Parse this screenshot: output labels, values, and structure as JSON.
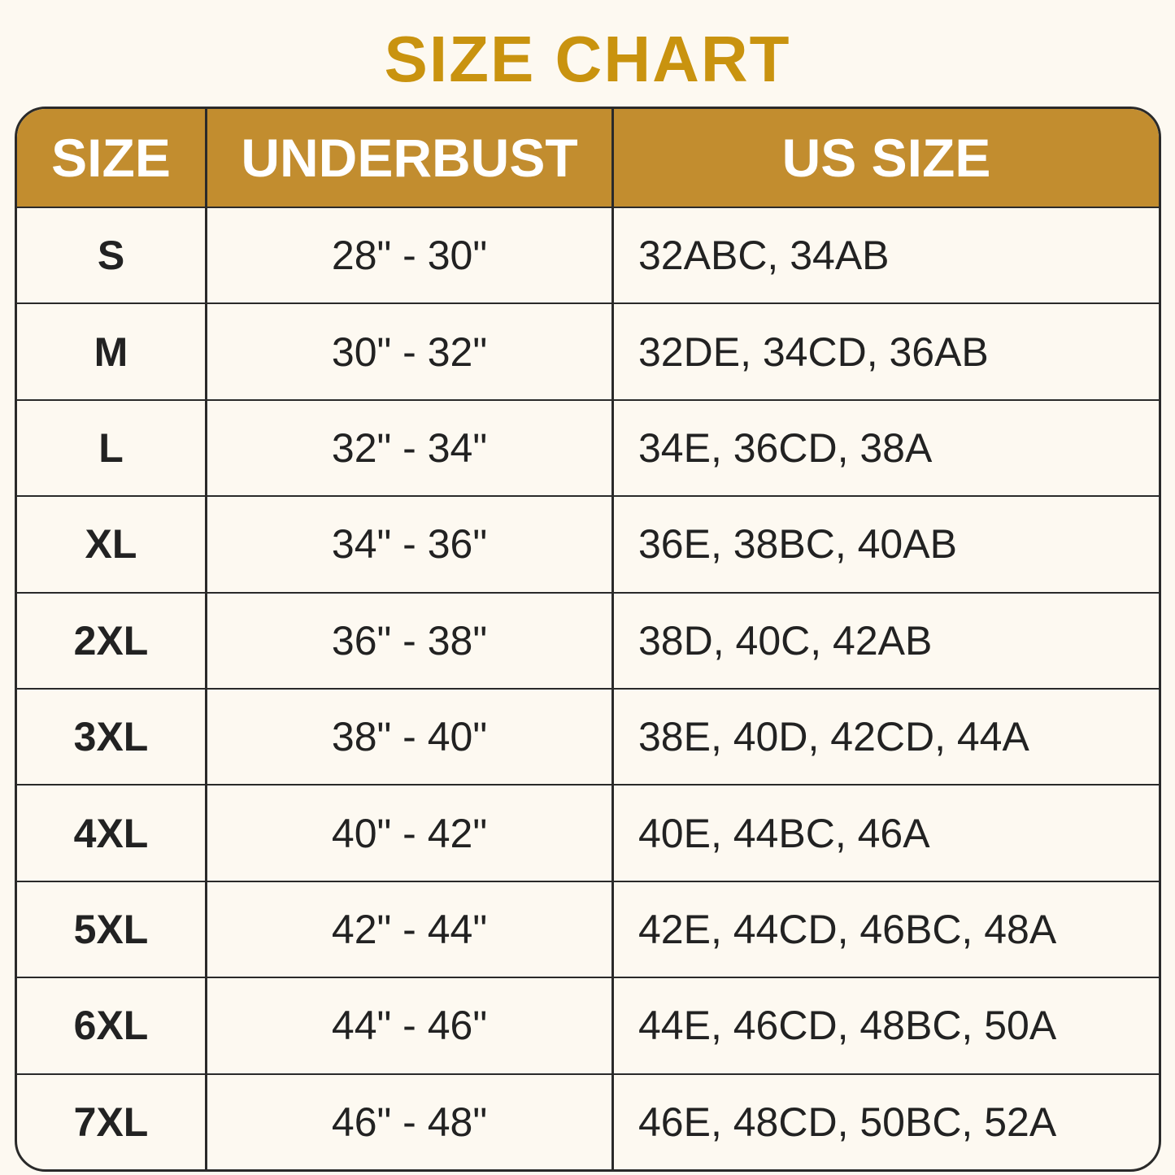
{
  "title": "SIZE CHART",
  "colors": {
    "title": "#c9930f",
    "header_bg": "#c28d2f",
    "background": "#fdf9f1",
    "text": "#222222"
  },
  "headers": [
    "SIZE",
    "UNDERBUST",
    "US SIZE"
  ],
  "rows": [
    [
      "S",
      "28\" - 30\"",
      "32ABC, 34AB"
    ],
    [
      "M",
      "30\" - 32\"",
      "32DE, 34CD, 36AB"
    ],
    [
      "L",
      "32\" - 34\"",
      "34E, 36CD, 38A"
    ],
    [
      "XL",
      "34\" - 36\"",
      "36E, 38BC, 40AB"
    ],
    [
      "2XL",
      "36\" - 38\"",
      "38D, 40C, 42AB"
    ],
    [
      "3XL",
      "38\" - 40\"",
      "38E, 40D, 42CD, 44A"
    ],
    [
      "4XL",
      "40\" - 42\"",
      "40E, 44BC, 46A"
    ],
    [
      "5XL",
      "42\" - 44\"",
      "42E, 44CD, 46BC, 48A"
    ],
    [
      "6XL",
      "44\" - 46\"",
      "44E, 46CD, 48BC, 50A"
    ],
    [
      "7XL",
      "46\" - 48\"",
      "46E, 48CD, 50BC, 52A"
    ]
  ]
}
